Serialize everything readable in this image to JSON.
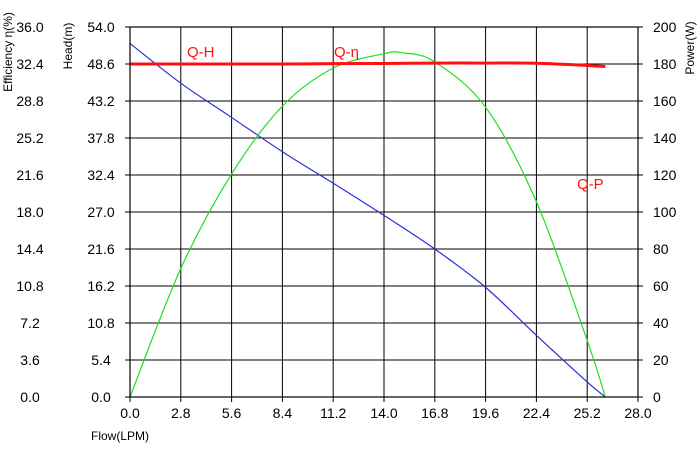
{
  "chart_data": {
    "type": "line",
    "xlabel": "Flow(LPM)",
    "y_left_outer_label": "Efficiency η(%)",
    "y_left_inner_label": "Head(m)",
    "y_right_label": "Power(W)",
    "grid": true,
    "xlim": [
      0,
      28
    ],
    "x_ticks": [
      "0.0",
      "2.8",
      "5.6",
      "8.4",
      "11.2",
      "14.0",
      "16.8",
      "19.6",
      "22.4",
      "25.2",
      "28.0"
    ],
    "y_eff_lim": [
      0,
      36
    ],
    "y_eff_ticks": [
      "0.0",
      "3.6",
      "7.2",
      "10.8",
      "14.4",
      "18.0",
      "21.6",
      "25.2",
      "28.8",
      "32.4",
      "36.0"
    ],
    "y_head_lim": [
      0,
      54
    ],
    "y_head_ticks": [
      "0.0",
      "5.4",
      "10.8",
      "16.2",
      "21.6",
      "27.0",
      "32.4",
      "37.8",
      "43.2",
      "48.6",
      "54.0"
    ],
    "y_power_lim": [
      0,
      200
    ],
    "y_power_ticks": [
      "0",
      "20",
      "40",
      "60",
      "80",
      "100",
      "120",
      "140",
      "160",
      "180",
      "200"
    ],
    "series": [
      {
        "name": "Q-H",
        "axis": "head",
        "color": "#2a2fd6",
        "x": [
          0,
          2.8,
          5.6,
          8.4,
          11.2,
          14.0,
          16.8,
          19.6,
          22.4,
          25.2,
          26.2
        ],
        "y": [
          51.6,
          45.8,
          40.8,
          35.8,
          31.2,
          26.5,
          21.6,
          16.0,
          9.0,
          2.2,
          0
        ]
      },
      {
        "name": "Q-η",
        "axis": "efficiency",
        "color": "#22dd22",
        "x": [
          0,
          2.8,
          5.6,
          8.4,
          11.2,
          14.0,
          15.0,
          16.8,
          19.6,
          22.4,
          25.2,
          26.2
        ],
        "y": [
          0,
          12.5,
          21.7,
          28.3,
          32.0,
          33.4,
          33.5,
          32.6,
          28.2,
          19.0,
          5.5,
          0
        ]
      },
      {
        "name": "Q-P",
        "axis": "power",
        "color": "#ff1111",
        "x": [
          0,
          2.8,
          5.6,
          8.4,
          11.2,
          14.0,
          16.8,
          19.6,
          22.4,
          25.2,
          26.2
        ],
        "y": [
          180,
          180,
          180,
          180,
          180.2,
          180.3,
          180.5,
          180.5,
          180.4,
          179.2,
          178.6
        ]
      }
    ],
    "labels": {
      "qh": "Q-H",
      "qeta": "Q-η",
      "qp": "Q-P"
    }
  }
}
